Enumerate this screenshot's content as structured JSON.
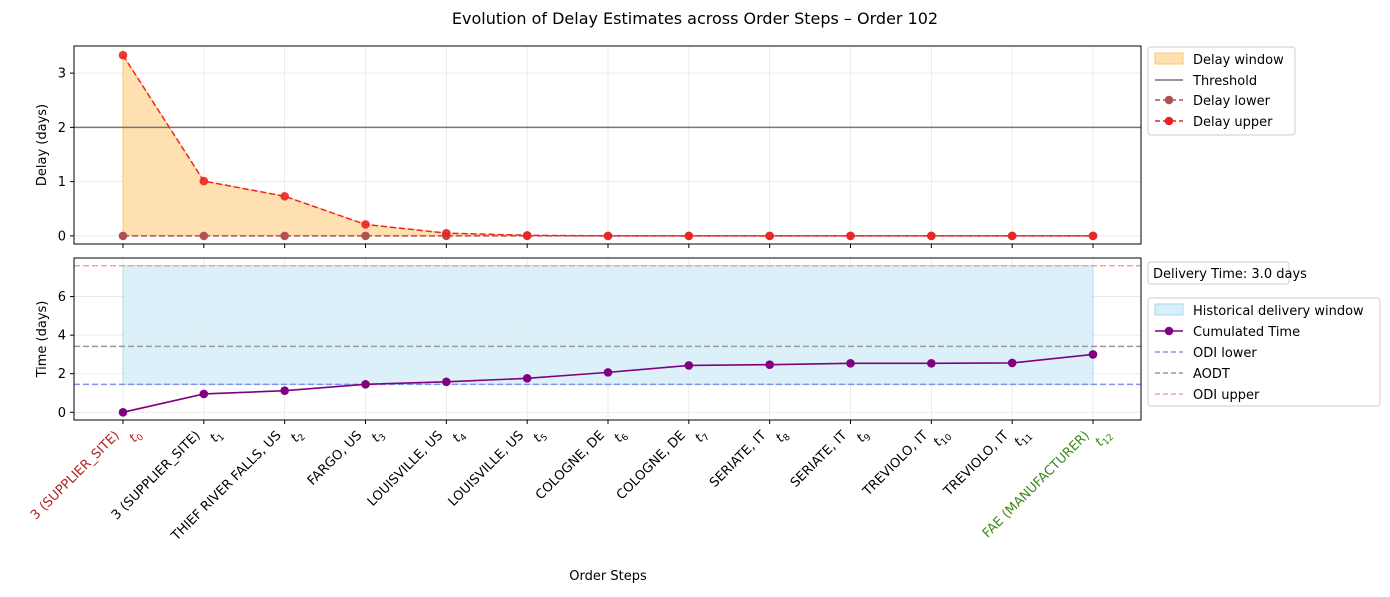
{
  "chart_data": {
    "title": "Evolution of Delay Estimates across Order Steps – Order 102",
    "xlabel": "Order Steps",
    "categories": [
      {
        "name": "3 (SUPPLIER_SITE)",
        "sub": "0",
        "color": "#b22222"
      },
      {
        "name": "3 (SUPPLIER_SITE)",
        "sub": "1",
        "color": "#000000"
      },
      {
        "name": "THIEF RIVER FALLS, US",
        "sub": "2",
        "color": "#000000"
      },
      {
        "name": "FARGO, US",
        "sub": "3",
        "color": "#000000"
      },
      {
        "name": "LOUISVILLE, US",
        "sub": "4",
        "color": "#000000"
      },
      {
        "name": "LOUISVILLE, US",
        "sub": "5",
        "color": "#000000"
      },
      {
        "name": "COLOGNE, DE",
        "sub": "6",
        "color": "#000000"
      },
      {
        "name": "COLOGNE, DE",
        "sub": "7",
        "color": "#000000"
      },
      {
        "name": "SERIATE, IT",
        "sub": "8",
        "color": "#000000"
      },
      {
        "name": "SERIATE, IT",
        "sub": "9",
        "color": "#000000"
      },
      {
        "name": "TREVIOLO, IT",
        "sub": "10",
        "color": "#000000"
      },
      {
        "name": "TREVIOLO, IT",
        "sub": "11",
        "color": "#000000"
      },
      {
        "name": "FAE (MANUFACTURER)",
        "sub": "12",
        "color": "#3a8a1a"
      }
    ],
    "top": {
      "type": "line",
      "ylabel": "Delay (days)",
      "ylim": [
        -0.15,
        3.5
      ],
      "yticks": [
        0,
        1,
        2,
        3
      ],
      "grid": true,
      "threshold": 2.0,
      "series": {
        "delay_lower": [
          0,
          0,
          0,
          0,
          0,
          0,
          0,
          0,
          0,
          0,
          0,
          0,
          0
        ],
        "delay_upper": [
          3.33,
          1.01,
          0.73,
          0.21,
          0.05,
          0.01,
          0.0,
          0.0,
          0.0,
          0.0,
          0.0,
          0.0,
          0.0
        ]
      },
      "legend": {
        "placement": "outside-right",
        "entries": [
          "Delay window",
          "Threshold",
          "Delay lower",
          "Delay upper"
        ]
      }
    },
    "bottom": {
      "type": "line",
      "ylabel": "Time (days)",
      "ylim": [
        -0.4,
        8.0
      ],
      "yticks": [
        0,
        2,
        4,
        6
      ],
      "grid": true,
      "historical_window": [
        1.45,
        7.6
      ],
      "odi_lower": 1.45,
      "aodt": 3.42,
      "odi_upper": 7.6,
      "series": {
        "cumulated_time": [
          0.0,
          0.95,
          1.12,
          1.45,
          1.58,
          1.76,
          2.07,
          2.43,
          2.47,
          2.54,
          2.54,
          2.56,
          3.0
        ]
      },
      "info_box": "Delivery Time: 3.0 days",
      "legend": {
        "placement": "outside-right",
        "entries": [
          "Historical delivery window",
          "Cumulated Time",
          "ODI lower",
          "AODT",
          "ODI upper"
        ]
      }
    },
    "colors": {
      "delay_window": "#ffe0b0",
      "delay_window_edge": "#ffc870",
      "threshold": "#777777",
      "delay_lower": "#b05050",
      "delay_upper": "#ee2222",
      "hist_window": "#d8eef8",
      "hist_window_edge": "#a8d8f0",
      "cumulated": "#800080",
      "odi_lower": "#8890ee",
      "aodt": "#999999",
      "odi_upper": "#f5a0a8"
    }
  }
}
